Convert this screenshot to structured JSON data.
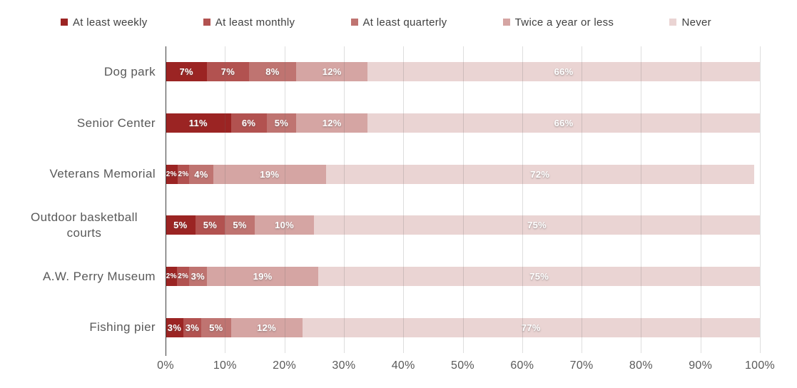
{
  "chart_data": {
    "type": "bar",
    "variant": "horizontal-stacked",
    "title": "",
    "xlabel": "",
    "ylabel": "",
    "categories": [
      "Dog park",
      "Senior Center",
      "Veterans Memorial",
      "Outdoor basketball courts",
      "A.W. Perry Museum",
      "Fishing pier"
    ],
    "series": [
      {
        "name": "At least weekly",
        "color": "#9B2423",
        "values": [
          7,
          11,
          2,
          5,
          2,
          3
        ]
      },
      {
        "name": "At least monthly",
        "color": "#B25250",
        "values": [
          7,
          6,
          2,
          5,
          2,
          3
        ]
      },
      {
        "name": "At least quarterly",
        "color": "#BF7471",
        "values": [
          8,
          5,
          4,
          5,
          3,
          5
        ]
      },
      {
        "name": "Twice a year or less",
        "color": "#D5A5A3",
        "values": [
          12,
          12,
          19,
          10,
          19,
          12
        ]
      },
      {
        "name": "Never",
        "color": "#EAD4D3",
        "values": [
          66,
          66,
          72,
          75,
          75,
          77
        ]
      }
    ],
    "x_ticks": [
      "0%",
      "10%",
      "20%",
      "30%",
      "40%",
      "50%",
      "60%",
      "70%",
      "80%",
      "90%",
      "100%"
    ],
    "xlim": [
      0,
      100
    ],
    "grid": true,
    "legend_position": "top",
    "value_suffix": "%"
  },
  "colors": {
    "background": "#FFFFFF",
    "category_label": "#595959",
    "tick_label": "#595959",
    "legend_text": "#404040",
    "gridline_overlay": "rgba(105,105,105,0.22)",
    "axis_line": "#3F3F3F",
    "segment_label": "#FFFFFF"
  }
}
